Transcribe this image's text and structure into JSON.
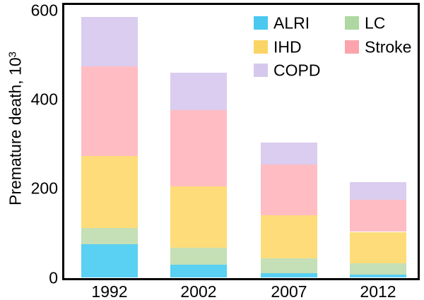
{
  "labels": {
    "ylabel_main": "Premature death, 10",
    "ylabel_sup": "3"
  },
  "chart_data": {
    "type": "bar",
    "stacked": true,
    "title": "",
    "xlabel": "",
    "ylabel": "Premature death, 10^3",
    "ylim": [
      0,
      600
    ],
    "grid": false,
    "y_ticks": [
      0,
      200,
      400,
      600
    ],
    "categories": [
      "1992",
      "2002",
      "2007",
      "2012"
    ],
    "series": [
      {
        "name": "ALRI",
        "color": "#49C9EF",
        "bar_color": "#5AD0F3",
        "values": [
          75,
          30,
          11,
          7
        ]
      },
      {
        "name": "LC",
        "color": "#AED7A1",
        "bar_color": "#C5DFB6",
        "values": [
          36,
          37,
          33,
          25
        ]
      },
      {
        "name": "IHD",
        "color": "#FBD466",
        "bar_color": "#FDDC79",
        "values": [
          162,
          138,
          96,
          71
        ]
      },
      {
        "name": "Stroke",
        "color": "#FBA4AD",
        "bar_color": "#FFBDC3",
        "values": [
          201,
          171,
          114,
          72
        ]
      },
      {
        "name": "COPD",
        "color": "#D6C8ED",
        "bar_color": "#DACDEF",
        "values": [
          112,
          84,
          50,
          40
        ]
      }
    ],
    "stack_order_bottom_to_top": [
      "ALRI",
      "LC",
      "IHD",
      "Stroke",
      "COPD"
    ],
    "legend": {
      "position": "top-right-inside",
      "columns": [
        [
          "ALRI",
          "IHD",
          "COPD"
        ],
        [
          "LC",
          "Stroke"
        ]
      ]
    }
  }
}
